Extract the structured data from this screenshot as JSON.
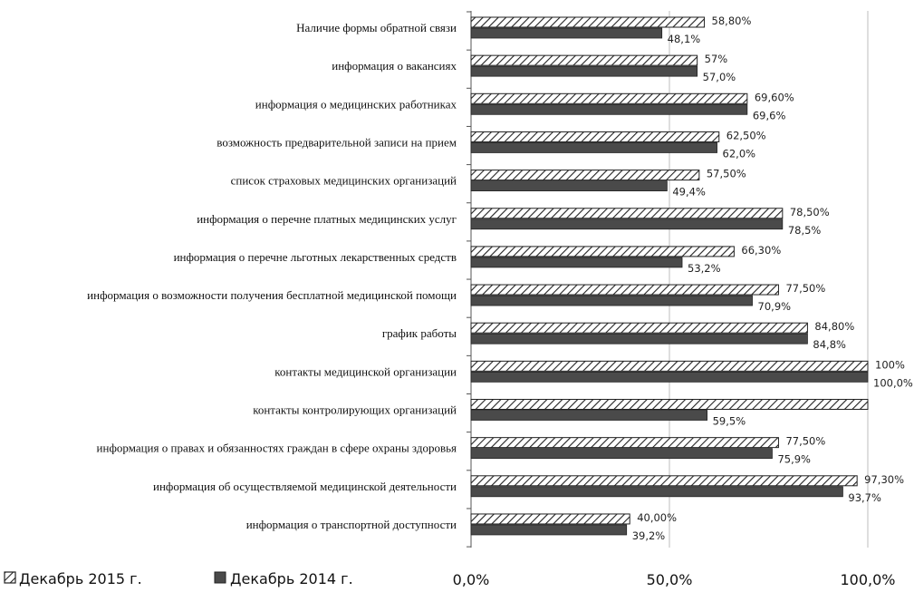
{
  "chart_data": {
    "type": "bar",
    "orientation": "horizontal",
    "categories": [
      "Наличие формы обратной связи",
      "информация о вакансиях",
      "информация о медицинских работниках",
      "возможность предварительной записи на прием",
      "список страховых медицинских организаций",
      "информация о перечне платных медицинских услуг",
      "информация о перечне льготных лекарственных средств",
      "информация о возможности получения бесплатной медицинской помощи",
      "график работы",
      "контакты медицинской организации",
      "контакты контролирующих организаций",
      "информация о правах и обязанностях граждан в сфере охраны здоровья",
      "информация об осуществляемой медицинской деятельности",
      "информация о транспортной доступности"
    ],
    "series": [
      {
        "name": "Декабрь 2015 г.",
        "pattern": "hatched",
        "values": [
          58.8,
          57,
          69.6,
          62.5,
          57.5,
          78.5,
          66.3,
          77.5,
          84.8,
          100,
          100,
          77.5,
          97.3,
          40.0
        ],
        "labels": [
          "58,80%",
          "57%",
          "69,60%",
          "62,50%",
          "57,50%",
          "78,50%",
          "66,30%",
          "77,50%",
          "84,80%",
          "100%",
          "",
          "77,50%",
          "97,30%",
          "40,00%"
        ]
      },
      {
        "name": "Декабрь 2014 г.",
        "color": "#4a4a4a",
        "values": [
          48.1,
          57.0,
          69.6,
          62.0,
          49.4,
          78.5,
          53.2,
          70.9,
          84.8,
          100.0,
          59.5,
          75.9,
          93.7,
          39.2
        ],
        "labels": [
          "48,1%",
          "57,0%",
          "69,6%",
          "62,0%",
          "49,4%",
          "78,5%",
          "53,2%",
          "70,9%",
          "84,8%",
          "100,0%",
          "59,5%",
          "75,9%",
          "93,7%",
          "39,2%"
        ]
      }
    ],
    "xlim": [
      0,
      100
    ],
    "xticks": [
      "0,0%",
      "50,0%",
      "100,0%"
    ],
    "grid": "vertical major gridlines",
    "legend_position": "bottom-left"
  }
}
